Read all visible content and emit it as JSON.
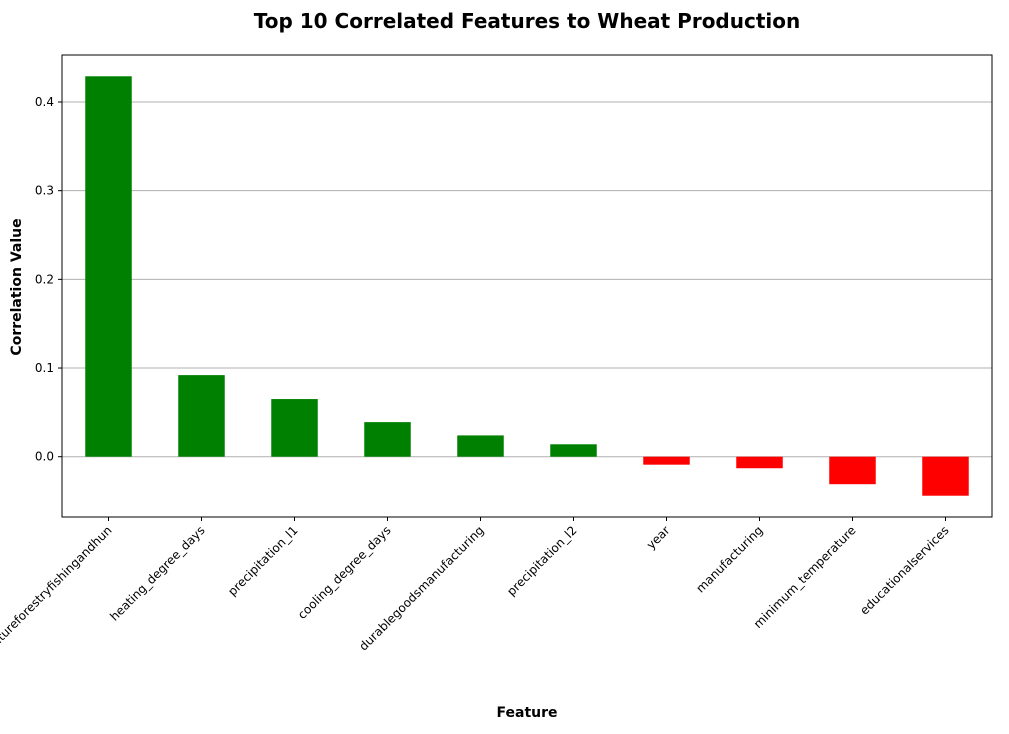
{
  "chart_data": {
    "type": "bar",
    "title": "Top 10 Correlated Features to Wheat Production",
    "xlabel": "Feature",
    "ylabel": "Correlation Value",
    "categories": [
      "agricultureforestryfishingandhun",
      "heating_degree_days",
      "precipitation_l1",
      "cooling_degree_days",
      "durablegoodsmanufacturing",
      "precipitation_l2",
      "year",
      "manufacturing",
      "minimum_temperature",
      "educationalservices"
    ],
    "values": [
      0.429,
      0.092,
      0.065,
      0.039,
      0.024,
      0.014,
      -0.009,
      -0.013,
      -0.031,
      -0.044
    ],
    "ylim": [
      -0.068,
      0.453
    ],
    "yticks": [
      0.0,
      0.1,
      0.2,
      0.3,
      0.4
    ],
    "ytick_labels": [
      "0.0",
      "0.1",
      "0.2",
      "0.3",
      "0.4"
    ],
    "grid": "horizontal",
    "colors": {
      "positive": "#008000",
      "negative": "#ff0000",
      "grid": "#b0b0b0"
    }
  }
}
